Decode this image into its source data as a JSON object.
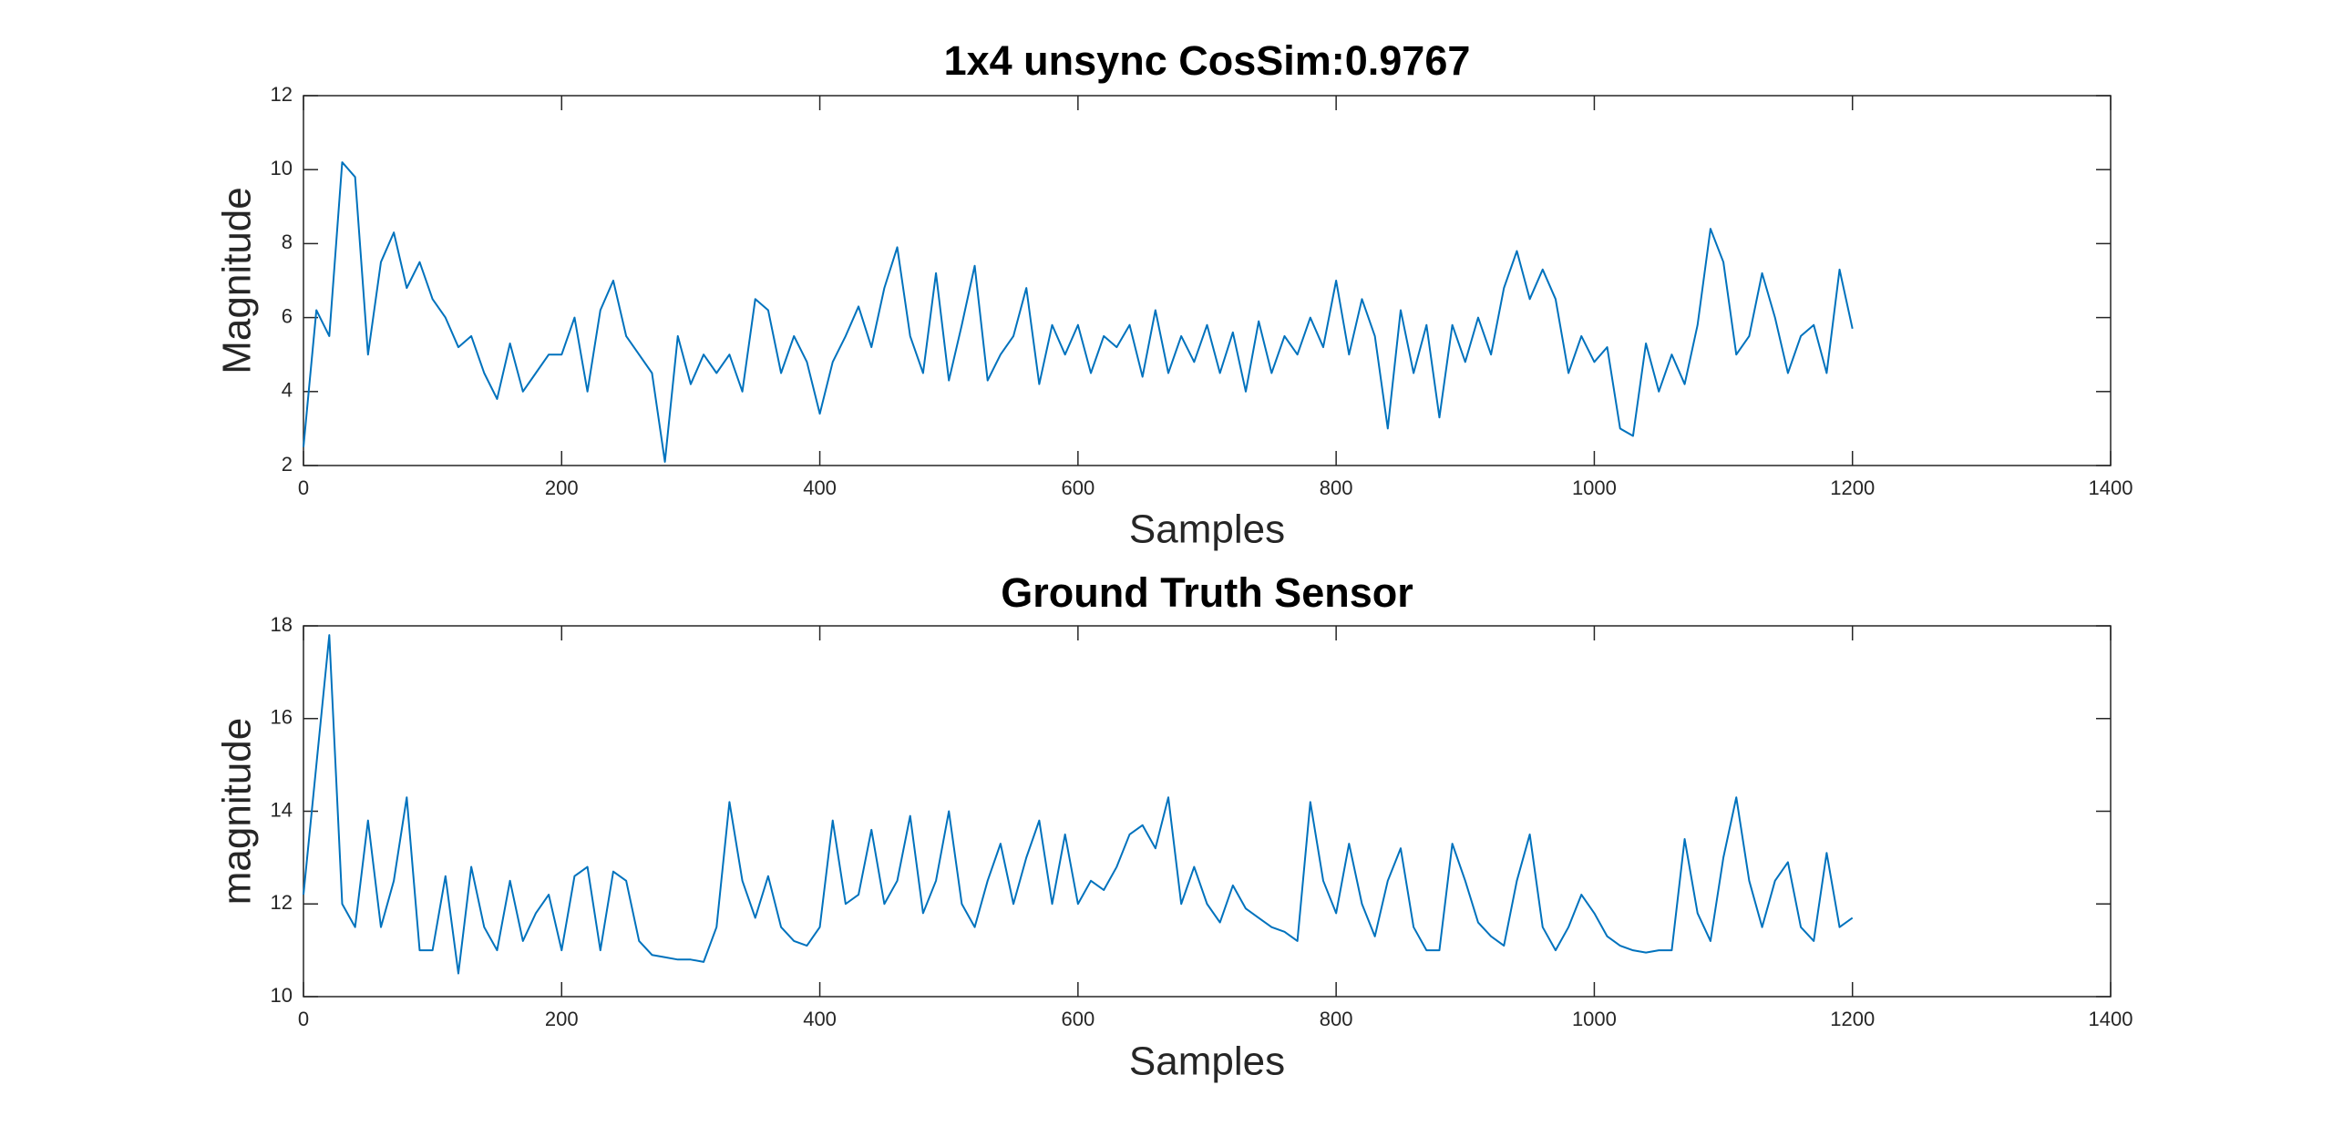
{
  "chart_data": [
    {
      "type": "line",
      "title": "1x4 unsync CosSim:0.9767",
      "xlabel": "Samples",
      "ylabel": "Magnitude",
      "color": "#0072bd",
      "x": [
        0,
        10,
        20,
        30,
        40,
        50,
        60,
        70,
        80,
        90,
        100,
        110,
        120,
        130,
        140,
        150,
        160,
        170,
        180,
        190,
        200,
        210,
        220,
        230,
        240,
        250,
        260,
        270,
        280,
        290,
        300,
        310,
        320,
        330,
        340,
        350,
        360,
        370,
        380,
        390,
        400,
        410,
        420,
        430,
        440,
        450,
        460,
        470,
        480,
        490,
        500,
        510,
        520,
        530,
        540,
        550,
        560,
        570,
        580,
        590,
        600,
        610,
        620,
        630,
        640,
        650,
        660,
        670,
        680,
        690,
        700,
        710,
        720,
        730,
        740,
        750,
        760,
        770,
        780,
        790,
        800,
        810,
        820,
        830,
        840,
        850,
        860,
        870,
        880,
        890,
        900,
        910,
        920,
        930,
        940,
        950,
        960,
        970,
        980,
        990,
        1000,
        1010,
        1020,
        1030,
        1040,
        1050,
        1060,
        1070,
        1080,
        1090,
        1100,
        1110,
        1120,
        1130,
        1140,
        1150,
        1160,
        1170,
        1180,
        1190,
        1200
      ],
      "values": [
        2.5,
        6.2,
        5.5,
        10.2,
        9.8,
        5,
        7.5,
        8.3,
        6.8,
        7.5,
        6.5,
        6,
        5.2,
        5.5,
        4.5,
        3.8,
        5.3,
        4,
        4.5,
        5,
        5,
        6,
        4,
        6.2,
        7,
        5.5,
        5,
        4.5,
        2.1,
        5.5,
        4.2,
        5,
        4.5,
        5,
        4,
        6.5,
        6.2,
        4.5,
        5.5,
        4.8,
        3.4,
        4.8,
        5.5,
        6.3,
        5.2,
        6.8,
        7.9,
        5.5,
        4.5,
        7.2,
        4.3,
        5.8,
        7.4,
        4.3,
        5,
        5.5,
        6.8,
        4.2,
        5.8,
        5,
        5.8,
        4.5,
        5.5,
        5.2,
        5.8,
        4.4,
        6.2,
        4.5,
        5.5,
        4.8,
        5.8,
        4.5,
        5.6,
        4,
        5.9,
        4.5,
        5.5,
        5,
        6,
        5.2,
        7,
        5,
        6.5,
        5.5,
        3,
        6.2,
        4.5,
        5.8,
        3.3,
        5.8,
        4.8,
        6,
        5,
        6.8,
        7.8,
        6.5,
        7.3,
        6.5,
        4.5,
        5.5,
        4.8,
        5.2,
        3,
        2.8,
        5.3,
        4,
        5,
        4.2,
        5.8,
        8.4,
        7.5,
        5,
        5.5,
        7.2,
        6,
        4.5,
        5.5,
        5.8,
        4.5,
        7.3,
        5.7
      ],
      "xlim": [
        0,
        1400
      ],
      "xticks": [
        0,
        200,
        400,
        600,
        800,
        1000,
        1200,
        1400
      ],
      "ylim": [
        2,
        12
      ],
      "yticks": [
        2,
        4,
        6,
        8,
        10,
        12
      ]
    },
    {
      "type": "line",
      "title": "Ground Truth Sensor",
      "xlabel": "Samples",
      "ylabel": "magnitude",
      "color": "#0072bd",
      "x": [
        0,
        10,
        20,
        30,
        40,
        50,
        60,
        70,
        80,
        90,
        100,
        110,
        120,
        130,
        140,
        150,
        160,
        170,
        180,
        190,
        200,
        210,
        220,
        230,
        240,
        250,
        260,
        270,
        280,
        290,
        300,
        310,
        320,
        330,
        340,
        350,
        360,
        370,
        380,
        390,
        400,
        410,
        420,
        430,
        440,
        450,
        460,
        470,
        480,
        490,
        500,
        510,
        520,
        530,
        540,
        550,
        560,
        570,
        580,
        590,
        600,
        610,
        620,
        630,
        640,
        650,
        660,
        670,
        680,
        690,
        700,
        710,
        720,
        730,
        740,
        750,
        760,
        770,
        780,
        790,
        800,
        810,
        820,
        830,
        840,
        850,
        860,
        870,
        880,
        890,
        900,
        910,
        920,
        930,
        940,
        950,
        960,
        970,
        980,
        990,
        1000,
        1010,
        1020,
        1030,
        1040,
        1050,
        1060,
        1070,
        1080,
        1090,
        1100,
        1110,
        1120,
        1130,
        1140,
        1150,
        1160,
        1170,
        1180,
        1190,
        1200
      ],
      "values": [
        12.2,
        15,
        17.8,
        12,
        11.5,
        13.8,
        11.5,
        12.5,
        14.3,
        11,
        11,
        12.6,
        10.5,
        12.8,
        11.5,
        11,
        12.5,
        11.2,
        11.8,
        12.2,
        11,
        12.6,
        12.8,
        11,
        12.7,
        12.5,
        11.2,
        10.9,
        10.85,
        10.8,
        10.8,
        10.75,
        11.5,
        14.2,
        12.5,
        11.7,
        12.6,
        11.5,
        11.2,
        11.1,
        11.5,
        13.8,
        12,
        12.2,
        13.6,
        12,
        12.5,
        13.9,
        11.8,
        12.5,
        14,
        12,
        11.5,
        12.5,
        13.3,
        12,
        13,
        13.8,
        12,
        13.5,
        12,
        12.5,
        12.3,
        12.8,
        13.5,
        13.7,
        13.2,
        14.3,
        12,
        12.8,
        12,
        11.6,
        12.4,
        11.9,
        11.7,
        11.5,
        11.4,
        11.2,
        14.2,
        12.5,
        11.8,
        13.3,
        12,
        11.3,
        12.5,
        13.2,
        11.5,
        11,
        11,
        13.3,
        12.5,
        11.6,
        11.3,
        11.1,
        12.5,
        13.5,
        11.5,
        11,
        11.5,
        12.2,
        11.8,
        11.3,
        11.1,
        11,
        10.95,
        11,
        11,
        13.4,
        11.8,
        11.2,
        13,
        14.3,
        12.5,
        11.5,
        12.5,
        12.9,
        11.5,
        11.2,
        13.1,
        11.5,
        11.7
      ],
      "xlim": [
        0,
        1400
      ],
      "xticks": [
        0,
        200,
        400,
        600,
        800,
        1000,
        1200,
        1400
      ],
      "ylim": [
        10,
        18
      ],
      "yticks": [
        10,
        12,
        14,
        16,
        18
      ]
    }
  ]
}
